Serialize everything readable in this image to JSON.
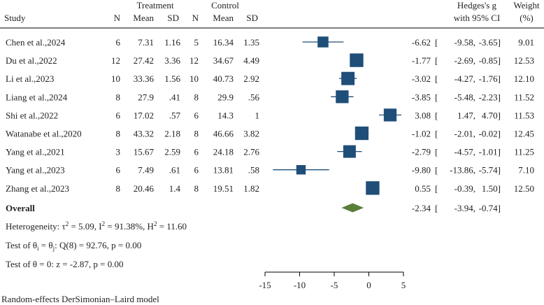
{
  "header": {
    "study": "Study",
    "treatment_group": "Treatment",
    "control_group": "Control",
    "n": "N",
    "mean": "Mean",
    "sd": "SD",
    "effect_line1": "Hedges's g",
    "effect_line2": "with 95% CI",
    "weight_line1": "Weight",
    "weight_line2": "(%)"
  },
  "colors": {
    "marker": "#1f4e79",
    "overall_diamond": "#5a7d3a",
    "whisker": "#1f4e79",
    "rule": "#000000"
  },
  "chart_data": {
    "type": "forest",
    "xlim": [
      -15,
      5
    ],
    "xticks": [
      -15,
      -10,
      -5,
      0,
      5
    ],
    "xtick_labels": [
      "-15",
      "-10",
      "-5",
      "0",
      "5"
    ],
    "studies": [
      {
        "name": "Chen et al.,2024",
        "t_n": "6",
        "t_mean": "7.31",
        "t_sd": "1.16",
        "c_n": "5",
        "c_mean": "16.34",
        "c_sd": "1.35",
        "g": -6.62,
        "lo": -9.58,
        "hi": -3.65,
        "g_text": "-6.62",
        "lo_text": "-9.58,",
        "hi_text": "-3.65]",
        "weight": 9.01,
        "weight_text": "9.01"
      },
      {
        "name": "Du et al.,2022",
        "t_n": "12",
        "t_mean": "27.42",
        "t_sd": "3.36",
        "c_n": "12",
        "c_mean": "34.67",
        "c_sd": "4.49",
        "g": -1.77,
        "lo": -2.69,
        "hi": -0.85,
        "g_text": "-1.77",
        "lo_text": "-2.69,",
        "hi_text": "-0.85]",
        "weight": 12.53,
        "weight_text": "12.53"
      },
      {
        "name": "Li et al.,2023",
        "t_n": "10",
        "t_mean": "33.36",
        "t_sd": "1.56",
        "c_n": "10",
        "c_mean": "40.73",
        "c_sd": "2.92",
        "g": -3.02,
        "lo": -4.27,
        "hi": -1.76,
        "g_text": "-3.02",
        "lo_text": "-4.27,",
        "hi_text": "-1.76]",
        "weight": 12.1,
        "weight_text": "12.10"
      },
      {
        "name": "Liang et al.,2024",
        "t_n": "8",
        "t_mean": "27.9",
        "t_sd": ".41",
        "c_n": "8",
        "c_mean": "29.9",
        "c_sd": ".56",
        "g": -3.85,
        "lo": -5.48,
        "hi": -2.23,
        "g_text": "-3.85",
        "lo_text": "-5.48,",
        "hi_text": "-2.23]",
        "weight": 11.52,
        "weight_text": "11.52"
      },
      {
        "name": "Shi et al.,2022",
        "t_n": "6",
        "t_mean": "17.02",
        "t_sd": ".57",
        "c_n": "6",
        "c_mean": "14.3",
        "c_sd": "1",
        "g": 3.08,
        "lo": 1.47,
        "hi": 4.7,
        "g_text": "3.08",
        "lo_text": "1.47,",
        "hi_text": "4.70]",
        "weight": 11.53,
        "weight_text": "11.53"
      },
      {
        "name": "Watanabe et al.,2020",
        "t_n": "8",
        "t_mean": "43.32",
        "t_sd": "2.18",
        "c_n": "8",
        "c_mean": "46.66",
        "c_sd": "3.82",
        "g": -1.02,
        "lo": -2.01,
        "hi": -0.02,
        "g_text": "-1.02",
        "lo_text": "-2.01,",
        "hi_text": "-0.02]",
        "weight": 12.45,
        "weight_text": "12.45"
      },
      {
        "name": "Yang et al.,2021",
        "t_n": "3",
        "t_mean": "15.67",
        "t_sd": "2.59",
        "c_n": "6",
        "c_mean": "24.18",
        "c_sd": "2.76",
        "g": -2.79,
        "lo": -4.57,
        "hi": -1.01,
        "g_text": "-2.79",
        "lo_text": "-4.57,",
        "hi_text": "-1.01]",
        "weight": 11.25,
        "weight_text": "11.25"
      },
      {
        "name": "Yang et al.,2023",
        "t_n": "6",
        "t_mean": "7.49",
        "t_sd": ".61",
        "c_n": "6",
        "c_mean": "13.81",
        "c_sd": ".58",
        "g": -9.8,
        "lo": -13.86,
        "hi": -5.74,
        "g_text": "-9.80",
        "lo_text": "-13.86,",
        "hi_text": "-5.74]",
        "weight": 7.1,
        "weight_text": "7.10"
      },
      {
        "name": "Zhang et al.,2023",
        "t_n": "8",
        "t_mean": "20.46",
        "t_sd": "1.4",
        "c_n": "8",
        "c_mean": "19.51",
        "c_sd": "1.82",
        "g": 0.55,
        "lo": -0.39,
        "hi": 1.5,
        "g_text": "0.55",
        "lo_text": "-0.39,",
        "hi_text": "1.50]",
        "weight": 12.5,
        "weight_text": "12.50"
      }
    ],
    "overall": {
      "label": "Overall",
      "g": -2.34,
      "lo": -3.94,
      "hi": -0.74,
      "g_text": "-2.34",
      "lo_text": "-3.94,",
      "hi_text": "-0.74]"
    },
    "heterogeneity": {
      "prefix": "Heterogeneity: τ",
      "tau_sup": "2",
      "tau_value": " = 5.09, I",
      "i_sup": "2",
      "i_value": " = 91.38%, H",
      "h_sup": "2",
      "h_value": " = 11.60"
    },
    "test_homogeneity": {
      "prefix": "Test of θ",
      "sub1": "i",
      "mid": " = θ",
      "sub2": "j",
      "rest": ": Q(8) = 92.76, p = 0.00"
    },
    "test_overall": "Test of θ = 0: z = -2.87, p = 0.00",
    "model_note": "Random-effects DerSimonian–Laird model"
  }
}
